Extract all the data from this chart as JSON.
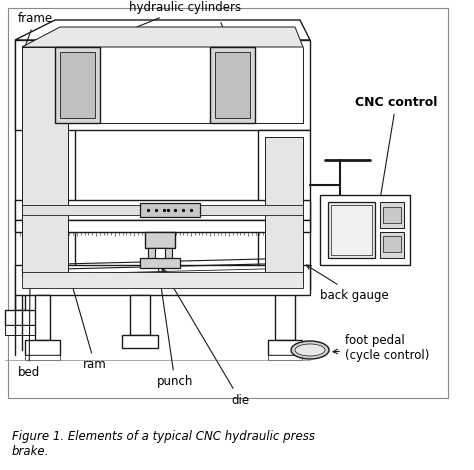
{
  "figure_caption_line1": "Figure 1. Elements of a typical CNC hydraulic press",
  "figure_caption_line2": "brake.",
  "bg_color": "#f0f0f0",
  "line_color": "#1a1a1a",
  "labels": {
    "frame": "frame",
    "hydraulic_cylinders": "hydraulic cylinders",
    "cnc_control": "CNC control",
    "back_gauge": "back gauge",
    "bed": "bed",
    "ram": "ram",
    "punch": "punch",
    "die": "die",
    "foot_pedal": "foot pedal\n(cycle control)"
  },
  "lw": 1.0
}
